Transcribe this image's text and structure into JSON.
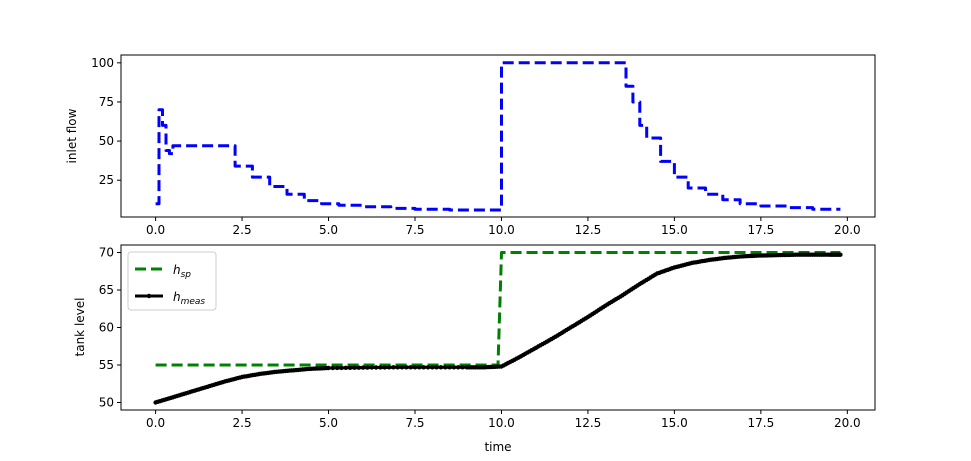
{
  "chart_data": [
    {
      "type": "line",
      "ylabel": "inlet flow",
      "xlabel": "",
      "xlim": [
        -1.0,
        20.8
      ],
      "ylim": [
        1.5,
        105.0
      ],
      "x_ticks": [
        0.0,
        2.5,
        5.0,
        7.5,
        10.0,
        12.5,
        15.0,
        17.5,
        20.0
      ],
      "x_tick_labels": [
        "0.0",
        "2.5",
        "5.0",
        "7.5",
        "10.0",
        "12.5",
        "15.0",
        "17.5",
        "20.0"
      ],
      "y_ticks": [
        25,
        50,
        75,
        100
      ],
      "y_tick_labels": [
        "25",
        "50",
        "75",
        "100"
      ],
      "grid": false,
      "series": [
        {
          "color": "#0000ff",
          "style": "dashed",
          "x": [
            0.0,
            0.1,
            0.1,
            0.2,
            0.2,
            0.3,
            0.3,
            0.4,
            0.4,
            0.5,
            0.5,
            0.6,
            0.6,
            2.3,
            2.3,
            2.8,
            2.8,
            3.3,
            3.3,
            3.8,
            3.8,
            4.3,
            4.3,
            4.8,
            4.8,
            5.3,
            5.3,
            6.0,
            6.0,
            6.8,
            6.8,
            7.5,
            7.5,
            8.5,
            8.5,
            9.8,
            9.8,
            10.0,
            10.0,
            13.6,
            13.6,
            13.8,
            13.8,
            14.0,
            14.0,
            14.2,
            14.2,
            14.6,
            14.6,
            15.0,
            15.0,
            15.4,
            15.4,
            15.9,
            15.9,
            16.4,
            16.4,
            16.9,
            16.9,
            17.5,
            17.5,
            18.3,
            18.3,
            19.0,
            19.0,
            19.8
          ],
          "y": [
            10,
            10,
            70,
            70,
            60,
            60,
            44,
            44,
            42,
            42,
            47,
            47,
            47,
            47,
            34,
            34,
            27,
            27,
            21,
            21,
            16,
            16,
            12,
            12,
            10,
            10,
            9,
            9,
            8,
            8,
            7,
            7,
            6.5,
            6.5,
            6,
            6,
            6,
            6,
            100,
            100,
            85,
            85,
            75,
            75,
            60,
            60,
            52,
            52,
            37,
            37,
            27,
            27,
            20,
            20,
            16,
            16,
            12.5,
            12.5,
            10,
            10,
            8.5,
            8.5,
            7.5,
            7.5,
            6.5,
            6.5
          ]
        }
      ]
    },
    {
      "type": "line",
      "ylabel": "tank level",
      "xlabel": "time",
      "xlim": [
        -1.0,
        20.8
      ],
      "ylim": [
        49.0,
        71.0
      ],
      "x_ticks": [
        0.0,
        2.5,
        5.0,
        7.5,
        10.0,
        12.5,
        15.0,
        17.5,
        20.0
      ],
      "x_tick_labels": [
        "0.0",
        "2.5",
        "5.0",
        "7.5",
        "10.0",
        "12.5",
        "15.0",
        "17.5",
        "20.0"
      ],
      "y_ticks": [
        50,
        55,
        60,
        65,
        70
      ],
      "y_tick_labels": [
        "50",
        "55",
        "60",
        "65",
        "70"
      ],
      "grid": false,
      "legend": {
        "placement": "upper-left",
        "entries": [
          {
            "base": "h",
            "sub": "sp",
            "color": "#008000",
            "style": "dashed"
          },
          {
            "base": "h",
            "sub": "meas",
            "color": "#000000",
            "style": "solid-dots"
          }
        ]
      },
      "series": [
        {
          "color": "#008000",
          "style": "dashed",
          "x": [
            0.0,
            9.9,
            10.0,
            19.8
          ],
          "y": [
            55.0,
            55.0,
            70.0,
            70.0
          ]
        },
        {
          "color": "#000000",
          "style": "solid-dots",
          "x": [
            0.0,
            0.5,
            1.0,
            1.5,
            2.0,
            2.5,
            3.0,
            3.5,
            4.0,
            4.5,
            5.0,
            6.0,
            7.0,
            8.0,
            9.0,
            9.5,
            10.0,
            10.5,
            11.0,
            11.5,
            12.0,
            12.5,
            13.0,
            13.5,
            14.0,
            14.5,
            15.0,
            15.5,
            16.0,
            16.5,
            17.0,
            17.5,
            18.0,
            18.5,
            19.0,
            19.5,
            19.8
          ],
          "y": [
            50.0,
            50.7,
            51.4,
            52.1,
            52.8,
            53.4,
            53.8,
            54.1,
            54.3,
            54.5,
            54.6,
            54.65,
            54.7,
            54.7,
            54.7,
            54.7,
            54.8,
            56.0,
            57.3,
            58.6,
            60.0,
            61.4,
            62.9,
            64.3,
            65.8,
            67.2,
            68.0,
            68.6,
            69.0,
            69.3,
            69.5,
            69.6,
            69.65,
            69.7,
            69.7,
            69.7,
            69.7
          ]
        }
      ]
    }
  ]
}
